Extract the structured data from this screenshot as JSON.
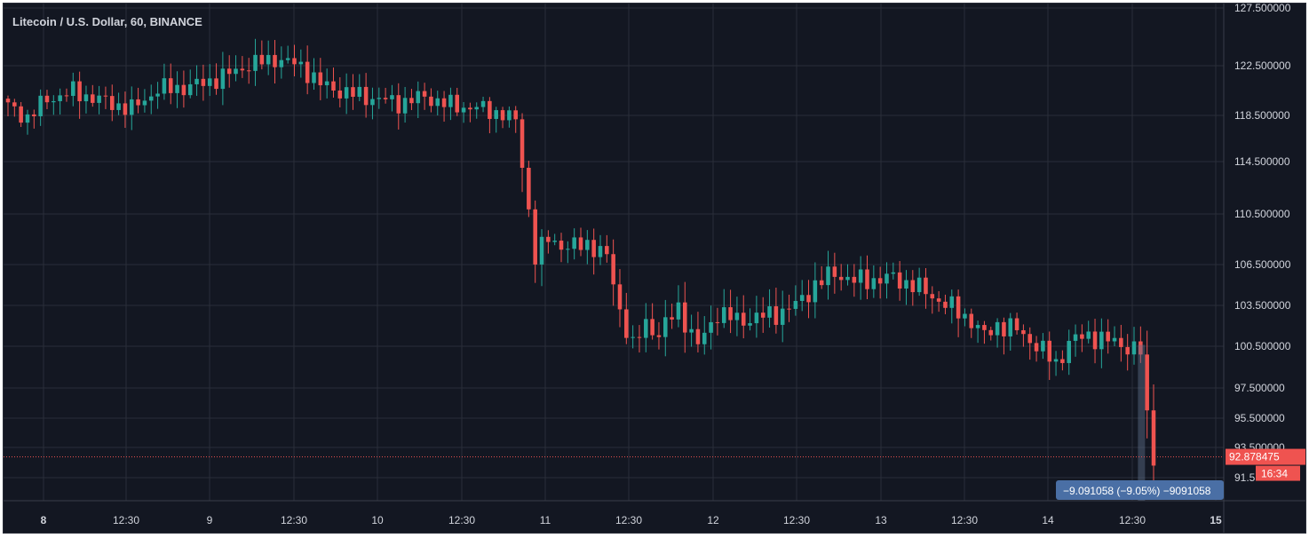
{
  "chart_data": {
    "type": "candlestick",
    "title": "Litecoin / U.S. Dollar, 60, BINANCE",
    "x_tick_labels": [
      "8",
      "12:30",
      "9",
      "12:30",
      "10",
      "12:30",
      "11",
      "12:30",
      "12",
      "12:30",
      "13",
      "12:30",
      "14",
      "12:30",
      "15"
    ],
    "x_tick_bold": [
      "8",
      "15"
    ],
    "y_tick_labels": [
      "127.500000",
      "122.500000",
      "118.500000",
      "114.500000",
      "110.500000",
      "106.500000",
      "103.500000",
      "100.500000",
      "97.500000",
      "95.500000",
      "93.500000",
      "91.5"
    ],
    "last_price": "92.878475",
    "countdown": "16:34",
    "measure_label": "−9.091058 (−9.05%) −9091058",
    "grid": true,
    "colors": {
      "background": "#131722",
      "grid": "#2a2e39",
      "up": "#26a69a",
      "down": "#ef5350",
      "text": "#d1d4dc",
      "price_label": "#ef5350",
      "measure": "#4a6fa5"
    },
    "anchors": [
      [
        0,
        119.2
      ],
      [
        3,
        118.3
      ],
      [
        6,
        119.8
      ],
      [
        10,
        120.4
      ],
      [
        15,
        119.6
      ],
      [
        19,
        119.0
      ],
      [
        23,
        120.6
      ],
      [
        28,
        120.8
      ],
      [
        33,
        121.6
      ],
      [
        37,
        122.6
      ],
      [
        41,
        123.1
      ],
      [
        45,
        122.5
      ],
      [
        48,
        121.0
      ],
      [
        52,
        120.3
      ],
      [
        56,
        119.9
      ],
      [
        60,
        119.5
      ],
      [
        64,
        120.0
      ],
      [
        68,
        119.3
      ],
      [
        72,
        119.1
      ],
      [
        76,
        118.6
      ],
      [
        78,
        118.0
      ],
      [
        80,
        110.8
      ],
      [
        81,
        107.0
      ],
      [
        83,
        108.6
      ],
      [
        86,
        107.8
      ],
      [
        89,
        108.2
      ],
      [
        92,
        107.1
      ],
      [
        94,
        103.2
      ],
      [
        96,
        100.4
      ],
      [
        98,
        102.2
      ],
      [
        100,
        101.4
      ],
      [
        103,
        103.3
      ],
      [
        106,
        100.5
      ],
      [
        109,
        103.0
      ],
      [
        112,
        102.4
      ],
      [
        115,
        102.6
      ],
      [
        118,
        102.9
      ],
      [
        121,
        103.5
      ],
      [
        124,
        105.0
      ],
      [
        127,
        105.9
      ],
      [
        130,
        105.3
      ],
      [
        133,
        105.4
      ],
      [
        136,
        105.5
      ],
      [
        139,
        105.0
      ],
      [
        142,
        104.2
      ],
      [
        145,
        103.3
      ],
      [
        148,
        102.4
      ],
      [
        150,
        101.2
      ],
      [
        152,
        102.1
      ],
      [
        155,
        101.7
      ],
      [
        158,
        100.6
      ],
      [
        161,
        99.2
      ],
      [
        163,
        100.8
      ],
      [
        166,
        101.3
      ],
      [
        169,
        100.9
      ],
      [
        172,
        100.5
      ],
      [
        174,
        100.1
      ],
      [
        175,
        95.4
      ],
      [
        176,
        93.0
      ]
    ]
  }
}
